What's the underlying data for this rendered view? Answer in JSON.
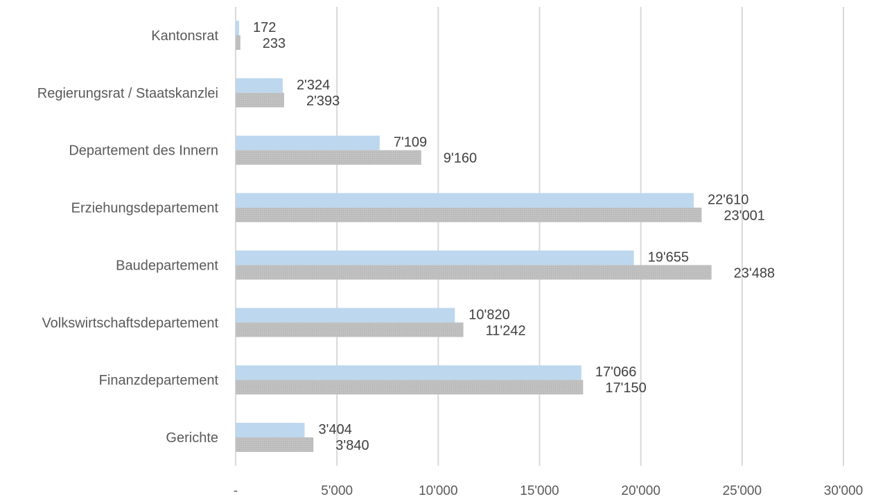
{
  "chart_data": {
    "type": "bar",
    "orientation": "horizontal",
    "categories": [
      "Kantonsrat",
      "Regierungsrat / Staatskanzlei",
      "Departement des Innern",
      "Erziehungsdepartement",
      "Baudepartement",
      "Volkswirtschaftsdepartement",
      "Finanzdepartement",
      "Gerichte"
    ],
    "series": [
      {
        "values": [
          172,
          2324,
          7109,
          22610,
          19655,
          10820,
          17066,
          3404
        ],
        "labels": [
          "172",
          "2'324",
          "7'109",
          "22'610",
          "19'655",
          "10'820",
          "17'066",
          "3'404"
        ],
        "color": "#bdd7ee"
      },
      {
        "values": [
          233,
          2393,
          9160,
          23001,
          23488,
          11242,
          17150,
          3840
        ],
        "labels": [
          "233",
          "2'393",
          "9'160",
          "23'001",
          "23'488",
          "11'242",
          "17'150",
          "3'840"
        ],
        "color": "#bfbfbf"
      }
    ],
    "x_ticks": [
      0,
      5000,
      10000,
      15000,
      20000,
      25000,
      30000
    ],
    "x_tick_labels": [
      "-",
      "5'000",
      "10'000",
      "15'000",
      "20'000",
      "25'000",
      "30'000"
    ],
    "xlim": [
      0,
      30000
    ],
    "grid": "vertical",
    "legend": "none",
    "title": "",
    "xlabel": "",
    "ylabel": ""
  }
}
